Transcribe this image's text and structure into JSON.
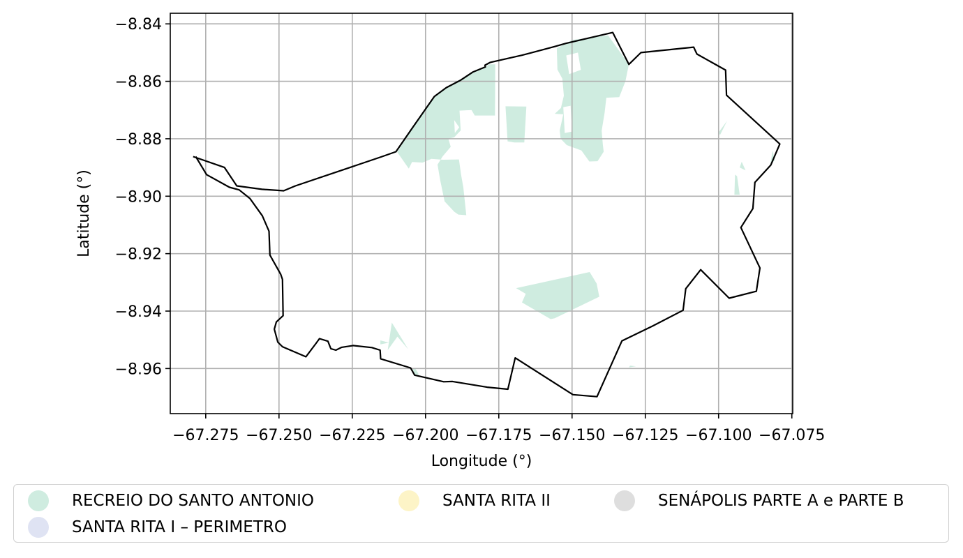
{
  "map": {
    "xlabel": "Longitude (°)",
    "ylabel": "Latitude (°)",
    "xlim": [
      -67.2871,
      -67.0747
    ],
    "ylim": [
      -8.9757,
      -8.8363
    ],
    "grid": true,
    "xticks": [
      -67.275,
      -67.25,
      -67.225,
      -67.2,
      -67.175,
      -67.15,
      -67.125,
      -67.1,
      -67.075
    ],
    "xtick_labels": [
      "−67.275",
      "−67.250",
      "−67.225",
      "−67.200",
      "−67.175",
      "−67.150",
      "−67.125",
      "−67.100",
      "−67.075"
    ],
    "yticks": [
      -8.84,
      -8.86,
      -8.88,
      -8.9,
      -8.92,
      -8.94,
      -8.96
    ],
    "ytick_labels": [
      "−8.84",
      "−8.86",
      "−8.88",
      "−8.90",
      "−8.92",
      "−8.94",
      "−8.96"
    ],
    "boundary_color": "#000000",
    "boundary": [
      [
        -67.2784,
        -8.8862
      ],
      [
        -67.2747,
        -8.8925
      ],
      [
        -67.2669,
        -8.8969
      ],
      [
        -67.2636,
        -8.8978
      ],
      [
        -67.2599,
        -8.9008
      ],
      [
        -67.2557,
        -8.9068
      ],
      [
        -67.2534,
        -8.9122
      ],
      [
        -67.2531,
        -8.9205
      ],
      [
        -67.2494,
        -8.9272
      ],
      [
        -67.2488,
        -8.929
      ],
      [
        -67.2486,
        -8.9416
      ],
      [
        -67.2509,
        -8.9438
      ],
      [
        -67.2516,
        -8.9463
      ],
      [
        -67.2504,
        -8.9508
      ],
      [
        -67.2488,
        -8.9524
      ],
      [
        -67.2408,
        -8.9559
      ],
      [
        -67.2374,
        -8.9513
      ],
      [
        -67.2362,
        -8.9496
      ],
      [
        -67.2333,
        -8.9505
      ],
      [
        -67.2323,
        -8.9531
      ],
      [
        -67.2306,
        -8.9536
      ],
      [
        -67.2286,
        -8.9526
      ],
      [
        -67.2247,
        -8.952
      ],
      [
        -67.2183,
        -8.9527
      ],
      [
        -67.2155,
        -8.9536
      ],
      [
        -67.2153,
        -8.9566
      ],
      [
        -67.2051,
        -8.9598
      ],
      [
        -67.2037,
        -8.9623
      ],
      [
        -67.1938,
        -8.9646
      ],
      [
        -67.1908,
        -8.9645
      ],
      [
        -67.179,
        -8.9665
      ],
      [
        -67.1719,
        -8.9672
      ],
      [
        -67.1694,
        -8.9563
      ],
      [
        -67.1497,
        -8.9691
      ],
      [
        -67.1415,
        -8.9698
      ],
      [
        -67.133,
        -8.9504
      ],
      [
        -67.1225,
        -8.9452
      ],
      [
        -67.1121,
        -8.9397
      ],
      [
        -67.1112,
        -8.9322
      ],
      [
        -67.1061,
        -8.9256
      ],
      [
        -67.0964,
        -8.9355
      ],
      [
        -67.0871,
        -8.9331
      ],
      [
        -67.0859,
        -8.925
      ],
      [
        -67.0924,
        -8.9109
      ],
      [
        -67.0883,
        -8.9043
      ],
      [
        -67.0876,
        -8.8952
      ],
      [
        -67.0822,
        -8.8892
      ],
      [
        -67.0791,
        -8.8818
      ],
      [
        -67.0973,
        -8.8648
      ],
      [
        -67.0976,
        -8.8561
      ],
      [
        -67.1074,
        -8.8505
      ],
      [
        -67.1085,
        -8.8481
      ],
      [
        -67.1265,
        -8.85
      ],
      [
        -67.1306,
        -8.8541
      ],
      [
        -67.1361,
        -8.843
      ],
      [
        -67.1521,
        -8.8468
      ],
      [
        -67.156,
        -8.8479
      ],
      [
        -67.167,
        -8.8509
      ],
      [
        -67.1779,
        -8.8534
      ],
      [
        -67.1797,
        -8.8544
      ],
      [
        -67.1796,
        -8.855
      ],
      [
        -67.1839,
        -8.8568
      ],
      [
        -67.1882,
        -8.8597
      ],
      [
        -67.1929,
        -8.8622
      ],
      [
        -67.197,
        -8.8653
      ],
      [
        -67.2044,
        -8.8761
      ],
      [
        -67.2101,
        -8.8845
      ],
      [
        -67.2151,
        -8.8863
      ],
      [
        -67.2444,
        -8.8964
      ],
      [
        -67.2484,
        -8.8981
      ],
      [
        -67.2558,
        -8.8976
      ],
      [
        -67.2644,
        -8.8964
      ],
      [
        -67.2686,
        -8.89
      ],
      [
        -67.2793,
        -8.8862
      ]
    ],
    "zones": [
      {
        "name": "RECREIO DO SANTO ANTONIO",
        "color": "#cfece0",
        "polygons": [
          [
            [
              -67.2097,
              -8.8846
            ],
            [
              -67.2044,
              -8.8761
            ],
            [
              -67.197,
              -8.8653
            ],
            [
              -67.1929,
              -8.8622
            ],
            [
              -67.1882,
              -8.8597
            ],
            [
              -67.1839,
              -8.8568
            ],
            [
              -67.1796,
              -8.855
            ],
            [
              -67.1783,
              -8.8541
            ],
            [
              -67.1762,
              -8.8541
            ],
            [
              -67.1763,
              -8.8719
            ],
            [
              -67.1832,
              -8.8719
            ],
            [
              -67.1843,
              -8.87
            ],
            [
              -67.1884,
              -8.8702
            ],
            [
              -67.188,
              -8.8771
            ],
            [
              -67.1902,
              -8.8795
            ],
            [
              -67.1922,
              -8.88
            ],
            [
              -67.1914,
              -8.8828
            ],
            [
              -67.1942,
              -8.8862
            ],
            [
              -67.1959,
              -8.889
            ],
            [
              -67.195,
              -8.8944
            ],
            [
              -67.1935,
              -8.9018
            ],
            [
              -67.1902,
              -8.9054
            ],
            [
              -67.1888,
              -8.9064
            ],
            [
              -67.1861,
              -8.9066
            ],
            [
              -67.1866,
              -8.9018
            ],
            [
              -67.1871,
              -8.897
            ],
            [
              -67.1879,
              -8.8923
            ],
            [
              -67.1886,
              -8.8872
            ],
            [
              -67.194,
              -8.8873
            ],
            [
              -67.198,
              -8.887
            ],
            [
              -67.201,
              -8.8883
            ],
            [
              -67.2046,
              -8.8881
            ],
            [
              -67.2057,
              -8.8904
            ],
            [
              -67.2097,
              -8.8846
            ]
          ],
          [
            [
              -67.1499,
              -8.8456
            ],
            [
              -67.1377,
              -8.844
            ],
            [
              -67.1306,
              -8.8541
            ],
            [
              -67.1318,
              -8.86
            ],
            [
              -67.1339,
              -8.8655
            ],
            [
              -67.1383,
              -8.8657
            ],
            [
              -67.1389,
              -8.871
            ],
            [
              -67.1399,
              -8.8772
            ],
            [
              -67.1395,
              -8.8821
            ],
            [
              -67.1392,
              -8.8845
            ],
            [
              -67.1413,
              -8.8878
            ],
            [
              -67.1441,
              -8.8879
            ],
            [
              -67.1468,
              -8.8841
            ],
            [
              -67.1518,
              -8.8822
            ],
            [
              -67.1539,
              -8.88
            ],
            [
              -67.1542,
              -8.8771
            ],
            [
              -67.153,
              -8.8715
            ],
            [
              -67.1559,
              -8.8713
            ],
            [
              -67.1538,
              -8.8693
            ],
            [
              -67.1528,
              -8.865
            ],
            [
              -67.1533,
              -8.8591
            ],
            [
              -67.155,
              -8.8559
            ],
            [
              -67.1552,
              -8.8485
            ],
            [
              -67.1499,
              -8.8456
            ]
          ],
          [
            [
              -67.1656,
              -8.8688
            ],
            [
              -67.1663,
              -8.8813
            ],
            [
              -67.1697,
              -8.8813
            ],
            [
              -67.172,
              -8.8809
            ],
            [
              -67.1727,
              -8.8687
            ],
            [
              -67.1656,
              -8.8688
            ]
          ],
          [
            [
              -67.1691,
              -8.932
            ],
            [
              -67.1658,
              -8.934
            ],
            [
              -67.1671,
              -8.937
            ],
            [
              -67.1573,
              -8.9428
            ],
            [
              -67.1559,
              -8.9425
            ],
            [
              -67.1407,
              -8.935
            ],
            [
              -67.1416,
              -8.9304
            ],
            [
              -67.144,
              -8.9264
            ],
            [
              -67.1691,
              -8.932
            ]
          ],
          [
            [
              -67.2129,
              -8.9536
            ],
            [
              -67.2115,
              -8.944
            ],
            [
              -67.2078,
              -8.9501
            ],
            [
              -67.2059,
              -8.9533
            ],
            [
              -67.2096,
              -8.9489
            ],
            [
              -67.2129,
              -8.9536
            ]
          ],
          [
            [
              -67.2125,
              -8.951
            ],
            [
              -67.2154,
              -8.9502
            ],
            [
              -67.2154,
              -8.9516
            ],
            [
              -67.2125,
              -8.951
            ]
          ],
          [
            [
              -67.2046,
              -8.9598
            ],
            [
              -67.2036,
              -8.9622
            ],
            [
              -67.2023,
              -8.962
            ],
            [
              -67.2035,
              -8.96
            ],
            [
              -67.2046,
              -8.9598
            ]
          ],
          [
            [
              -67.0971,
              -8.8738
            ],
            [
              -67.0995,
              -8.8787
            ],
            [
              -67.1,
              -8.8778
            ],
            [
              -67.0971,
              -8.8738
            ]
          ],
          [
            [
              -67.0921,
              -8.888
            ],
            [
              -67.0908,
              -8.891
            ],
            [
              -67.0928,
              -8.89
            ],
            [
              -67.0921,
              -8.888
            ]
          ],
          [
            [
              -67.0944,
              -8.8925
            ],
            [
              -67.0946,
              -8.8995
            ],
            [
              -67.0928,
              -8.8995
            ],
            [
              -67.0937,
              -8.893
            ],
            [
              -67.0944,
              -8.8925
            ]
          ],
          [
            [
              -67.0816,
              -8.8842
            ],
            [
              -67.0808,
              -8.8874
            ],
            [
              -67.0824,
              -8.8894
            ],
            [
              -67.0816,
              -8.8842
            ]
          ],
          [
            [
              -67.1302,
              -8.959
            ],
            [
              -67.1306,
              -8.9596
            ],
            [
              -67.1282,
              -8.9592
            ],
            [
              -67.1302,
              -8.959
            ]
          ]
        ]
      },
      {
        "name": "SANTA RITA I – PERIMETRO",
        "color": "#dfe3f3",
        "polygons": []
      },
      {
        "name": "SANTA RITA II",
        "color": "#fdf4c7",
        "polygons": []
      },
      {
        "name": "SENÁPOLIS PARTE A e PARTE B",
        "color": "#dedede",
        "polygons": []
      }
    ],
    "holes": [
      [
        [
          -67.152,
          -8.851
        ],
        [
          -67.148,
          -8.85
        ],
        [
          -67.147,
          -8.856
        ],
        [
          -67.151,
          -8.8575
        ],
        [
          -67.152,
          -8.851
        ]
      ],
      [
        [
          -67.153,
          -8.869
        ],
        [
          -67.1505,
          -8.8685
        ],
        [
          -67.15,
          -8.8775
        ],
        [
          -67.1525,
          -8.878
        ],
        [
          -67.153,
          -8.869
        ]
      ],
      [
        [
          -67.1902,
          -8.8735
        ],
        [
          -67.1885,
          -8.876
        ],
        [
          -67.19,
          -8.878
        ],
        [
          -67.1902,
          -8.8735
        ]
      ]
    ]
  },
  "legend": {
    "items": [
      {
        "label": "RECREIO DO SANTO ANTONIO",
        "color": "#cfece0"
      },
      {
        "label": "SANTA RITA I – PERIMETRO",
        "color": "#dfe3f3"
      },
      {
        "label": "SANTA RITA II",
        "color": "#fdf4c7"
      },
      {
        "label": "SENÁPOLIS PARTE A e PARTE B",
        "color": "#dedede"
      }
    ]
  }
}
